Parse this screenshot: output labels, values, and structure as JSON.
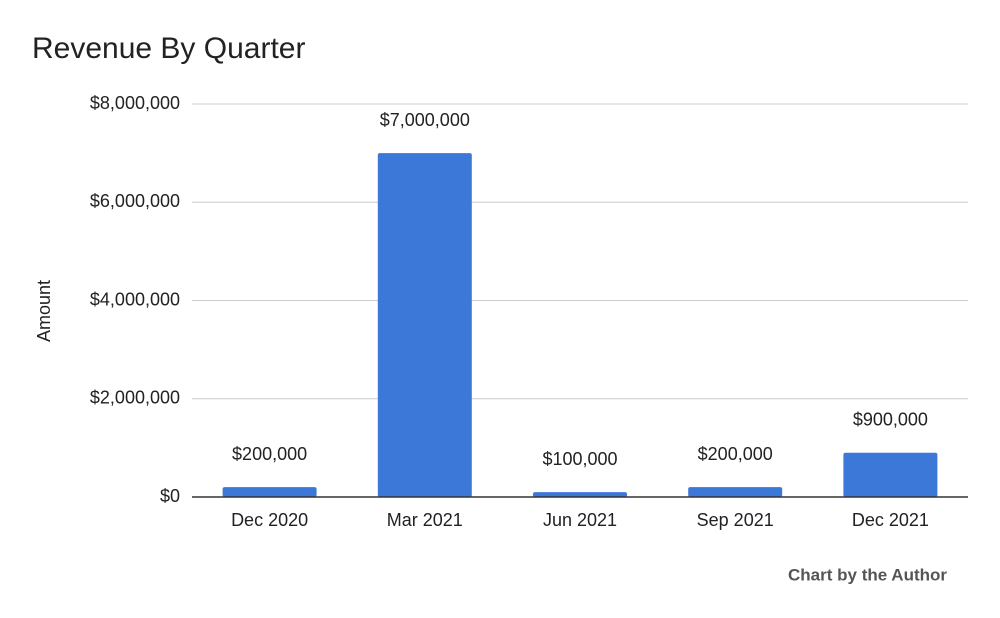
{
  "chart_data": {
    "type": "bar",
    "title": "Revenue By Quarter",
    "y_label": "Amount",
    "footnote": "Chart by the Author",
    "categories": [
      "Dec 2020",
      "Mar 2021",
      "Jun 2021",
      "Sep 2021",
      "Dec 2021"
    ],
    "values": [
      200000,
      7000000,
      100000,
      200000,
      900000
    ],
    "value_labels": [
      "$200,000",
      "$7,000,000",
      "$100,000",
      "$200,000",
      "$900,000"
    ],
    "color": "#3c78d8",
    "ylim": [
      0,
      8000000
    ],
    "yticks": [
      {
        "value": 0,
        "label": "$0"
      },
      {
        "value": 2000000,
        "label": "$2,000,000"
      },
      {
        "value": 4000000,
        "label": "$4,000,000"
      },
      {
        "value": 6000000,
        "label": "$6,000,000"
      },
      {
        "value": 8000000,
        "label": "$8,000,000"
      }
    ],
    "grid": true
  }
}
